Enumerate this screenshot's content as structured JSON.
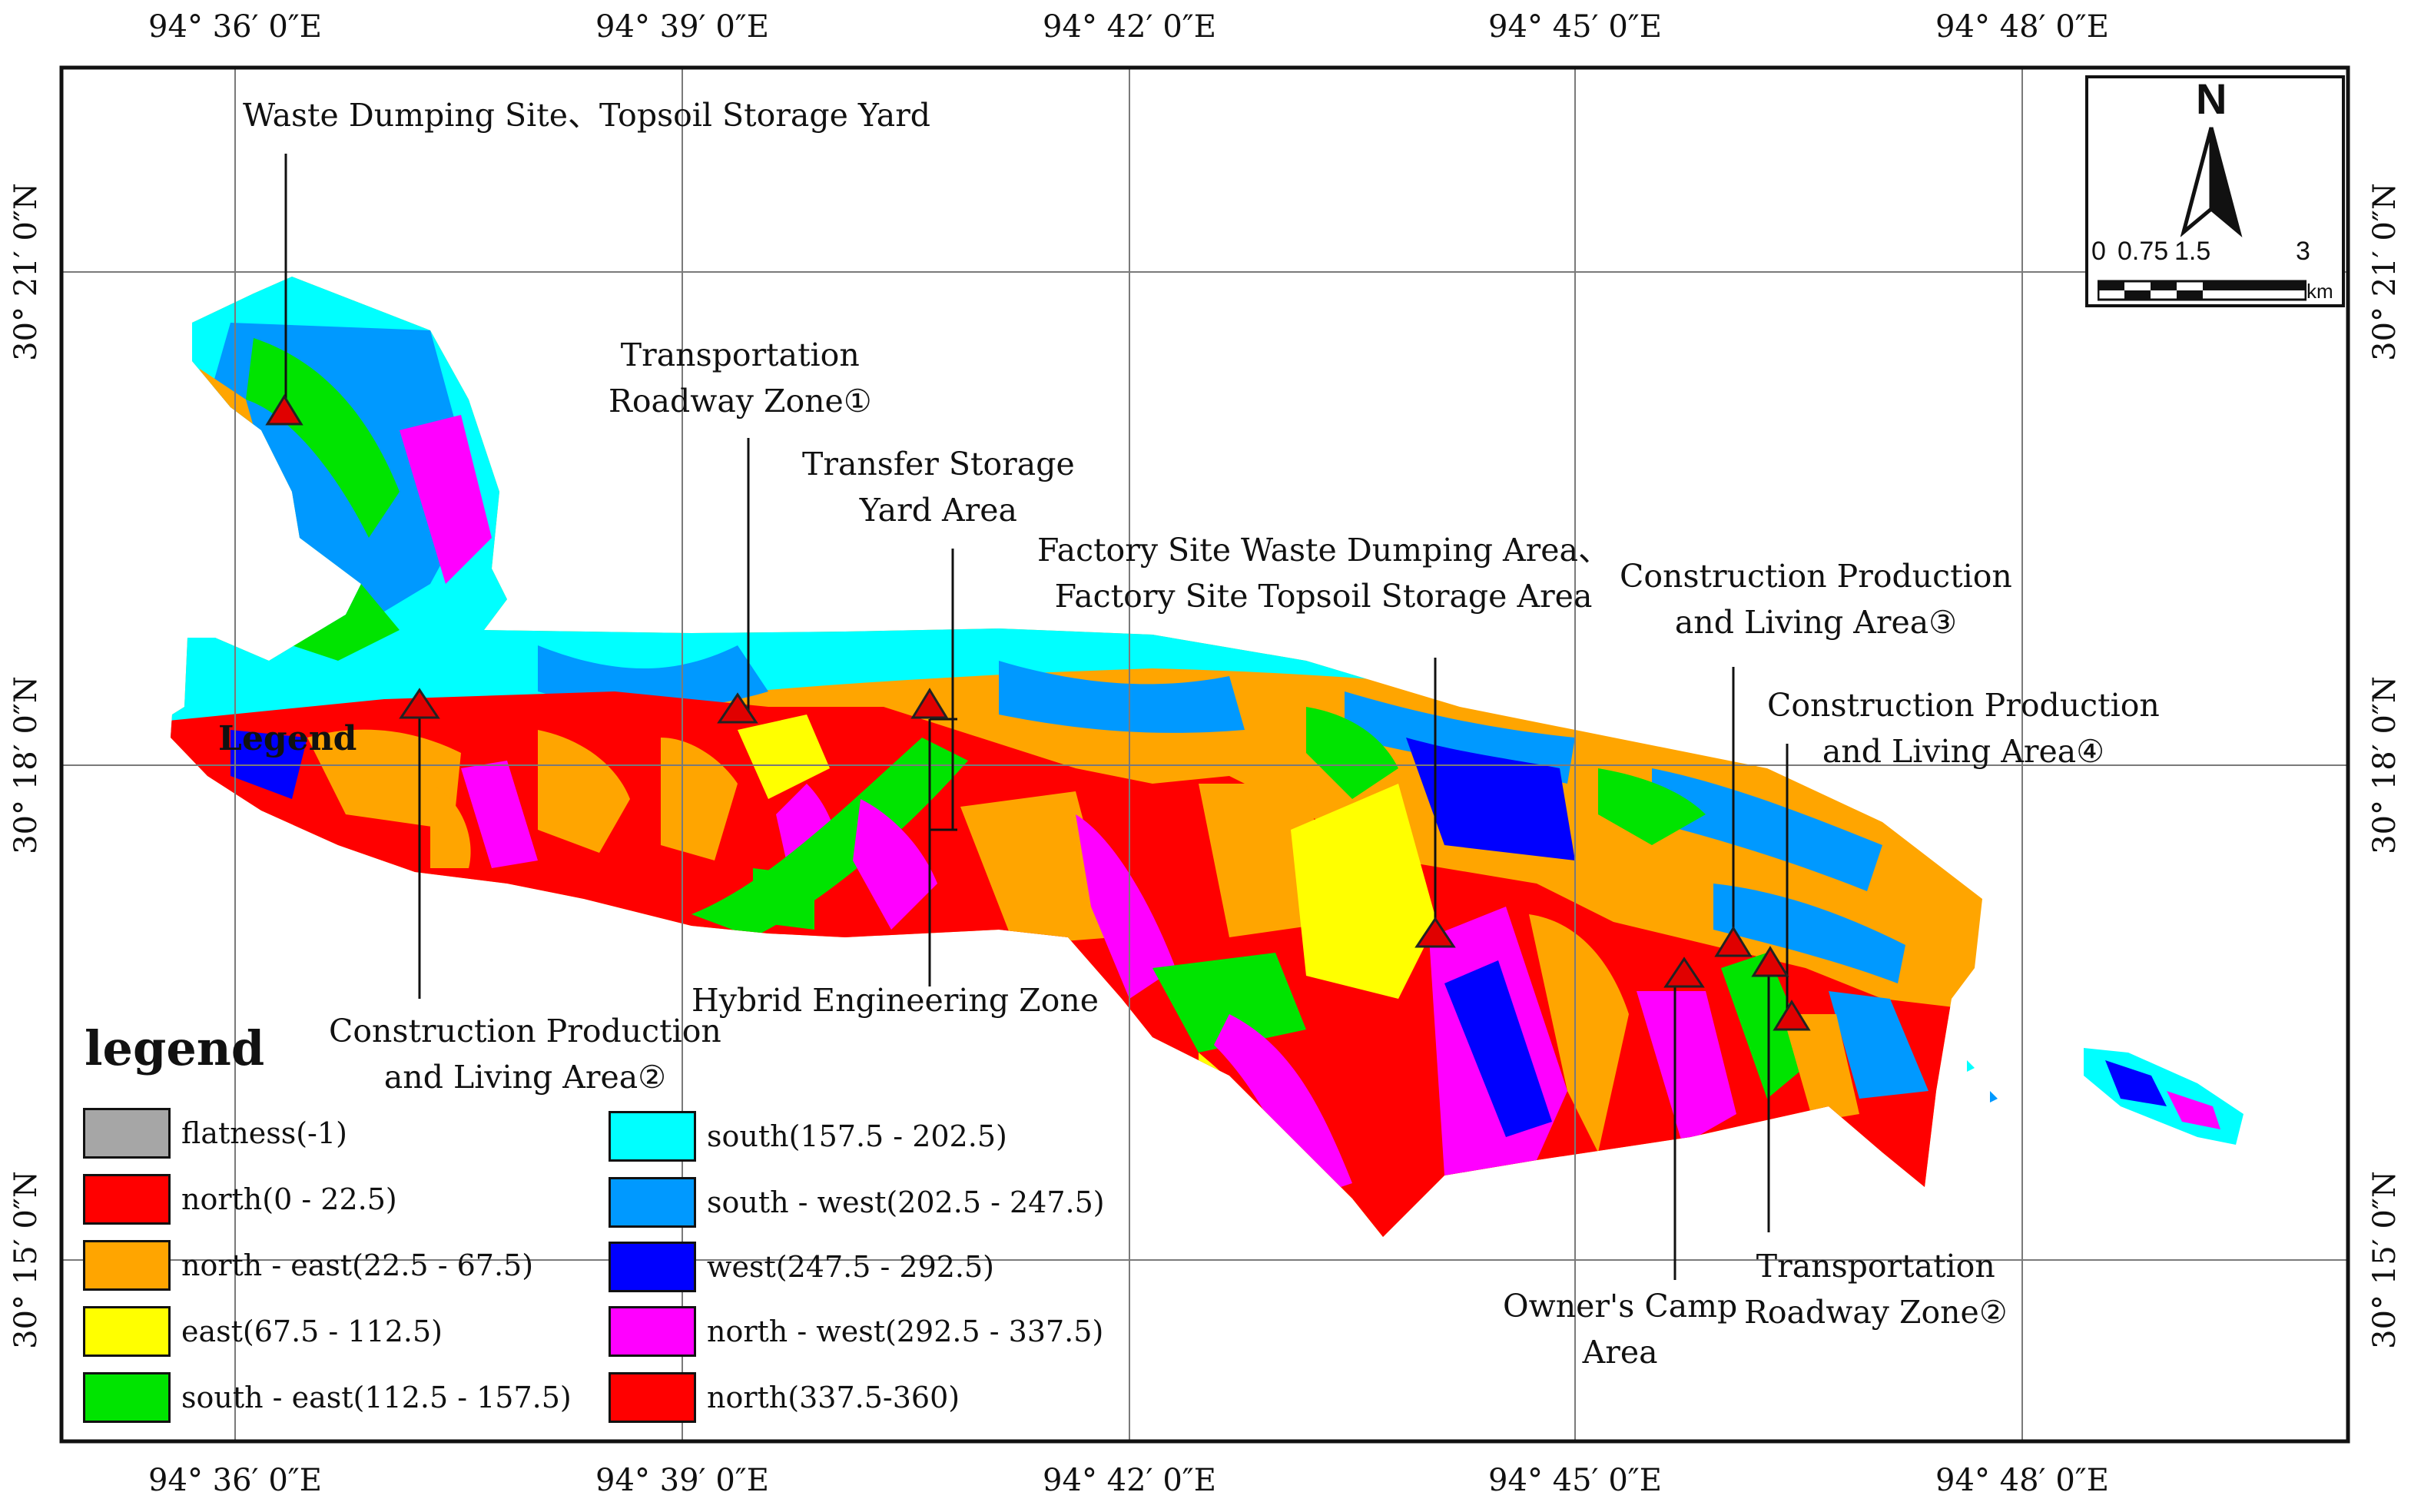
{
  "map": {
    "longitude_labels": [
      "94° 36′ 0″E",
      "94° 39′ 0″E",
      "94° 42′ 0″E",
      "94° 45′ 0″E",
      "94° 48′ 0″E"
    ],
    "latitude_labels": [
      "30° 21′ 0″N",
      "30° 18′ 0″N",
      "30° 15′ 0″N"
    ],
    "inline_legend_text": "Legend"
  },
  "site_labels": [
    {
      "id": "waste-dumping-site",
      "lines": [
        "Waste Dumping Site、Topsoil Storage Yard"
      ]
    },
    {
      "id": "transportation-roadway-zone-1",
      "lines": [
        "Transportation",
        "Roadway Zone①"
      ]
    },
    {
      "id": "transfer-storage-yard",
      "lines": [
        "Transfer Storage",
        "Yard Area"
      ]
    },
    {
      "id": "factory-site-waste-dumping",
      "lines": [
        "Factory Site Waste Dumping Area、",
        "Factory Site Topsoil Storage Area"
      ]
    },
    {
      "id": "construction-production-3",
      "lines": [
        "Construction Production",
        "and Living Area③"
      ]
    },
    {
      "id": "construction-production-4",
      "lines": [
        "Construction Production",
        "and Living Area④"
      ]
    },
    {
      "id": "hybrid-engineering-zone",
      "lines": [
        "Hybrid Engineering Zone"
      ]
    },
    {
      "id": "construction-production-2",
      "lines": [
        "Construction Production",
        "and Living Area②"
      ]
    },
    {
      "id": "owners-camp-area",
      "lines": [
        "Owner's Camp",
        "Area"
      ]
    },
    {
      "id": "transportation-roadway-zone-2",
      "lines": [
        "Transportation",
        "Roadway Zone②"
      ]
    }
  ],
  "north_arrow": {
    "letter": "N",
    "scale_numbers": [
      "0",
      "0.75",
      "1.5",
      "3"
    ],
    "scale_unit": "km"
  },
  "legend": {
    "title": "legend",
    "items": [
      {
        "label": "flatness(-1)",
        "color": "#a6a6a6"
      },
      {
        "label": "north(0 - 22.5)",
        "color": "#ff0000"
      },
      {
        "label": "north - east(22.5 - 67.5)",
        "color": "#ffa500"
      },
      {
        "label": "east(67.5 - 112.5)",
        "color": "#ffff00"
      },
      {
        "label": "south - east(112.5 - 157.5)",
        "color": "#00e400"
      },
      {
        "label": "south(157.5 - 202.5)",
        "color": "#00ffff"
      },
      {
        "label": "south - west(202.5 - 247.5)",
        "color": "#0099ff"
      },
      {
        "label": "west(247.5 - 292.5)",
        "color": "#0000ff"
      },
      {
        "label": "north - west(292.5 - 337.5)",
        "color": "#ff00ff"
      },
      {
        "label": "north(337.5-360)",
        "color": "#ff0000"
      }
    ]
  },
  "markers": {
    "color": "#e00000",
    "stroke": "#222222"
  }
}
